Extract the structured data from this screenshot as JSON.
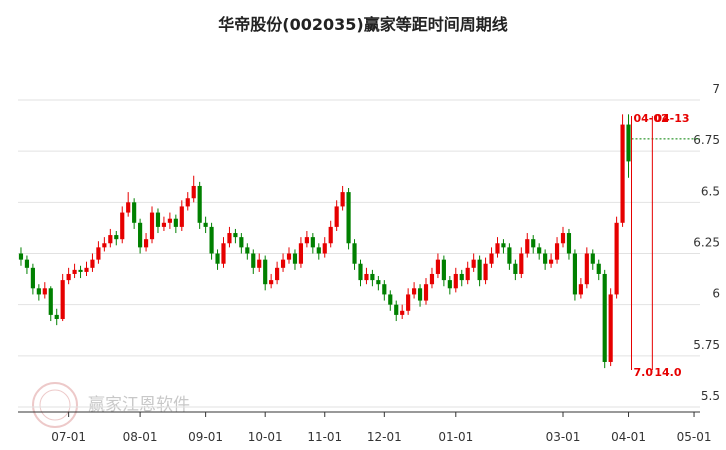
{
  "chart_data": {
    "type": "candlestick",
    "title": "华帝股份(002035)赢家等距时间周期线",
    "watermark": "赢家江恩软件",
    "up_color": "#e60000",
    "down_color": "#008000",
    "ylim": [
      5.5,
      7
    ],
    "yticks": [
      5.5,
      5.75,
      6,
      6.25,
      6.5,
      6.75,
      7
    ],
    "grid": true,
    "xlim": [
      -0.5,
      114
    ],
    "xticks": [
      {
        "value": 8,
        "label": "07-01"
      },
      {
        "value": 20,
        "label": "08-01"
      },
      {
        "value": 31,
        "label": "09-01"
      },
      {
        "value": 41,
        "label": "10-01"
      },
      {
        "value": 51,
        "label": "11-01"
      },
      {
        "value": 61,
        "label": "12-01"
      },
      {
        "value": 73,
        "label": "01-01"
      },
      {
        "value": 91,
        "label": "03-01"
      },
      {
        "value": 102,
        "label": "04-01"
      },
      {
        "value": 113,
        "label": "05-01"
      }
    ],
    "reference_line": {
      "value": 6.81,
      "color": "#008000"
    },
    "cycle_lines": [
      {
        "x": 102.5,
        "date": "04-02",
        "days": "7.0"
      },
      {
        "x": 106,
        "date": "04-13",
        "days": "14.0"
      }
    ],
    "cycle_color": "#e60000",
    "ohlc": [
      [
        6.25,
        6.28,
        6.19,
        6.22
      ],
      [
        6.22,
        6.24,
        6.15,
        6.18
      ],
      [
        6.18,
        6.2,
        6.05,
        6.08
      ],
      [
        6.08,
        6.1,
        6.02,
        6.05
      ],
      [
        6.05,
        6.11,
        6.03,
        6.08
      ],
      [
        6.08,
        6.09,
        5.92,
        5.95
      ],
      [
        5.95,
        5.98,
        5.9,
        5.93
      ],
      [
        5.93,
        6.15,
        5.92,
        6.12
      ],
      [
        6.12,
        6.18,
        6.1,
        6.15
      ],
      [
        6.15,
        6.2,
        6.13,
        6.17
      ],
      [
        6.17,
        6.19,
        6.13,
        6.16
      ],
      [
        6.16,
        6.21,
        6.14,
        6.18
      ],
      [
        6.18,
        6.25,
        6.16,
        6.22
      ],
      [
        6.22,
        6.31,
        6.2,
        6.28
      ],
      [
        6.28,
        6.33,
        6.26,
        6.3
      ],
      [
        6.3,
        6.37,
        6.28,
        6.34
      ],
      [
        6.34,
        6.36,
        6.29,
        6.32
      ],
      [
        6.32,
        6.48,
        6.3,
        6.45
      ],
      [
        6.45,
        6.55,
        6.43,
        6.5
      ],
      [
        6.5,
        6.52,
        6.37,
        6.4
      ],
      [
        6.4,
        6.42,
        6.25,
        6.28
      ],
      [
        6.28,
        6.35,
        6.26,
        6.32
      ],
      [
        6.32,
        6.48,
        6.3,
        6.45
      ],
      [
        6.45,
        6.47,
        6.35,
        6.38
      ],
      [
        6.38,
        6.43,
        6.36,
        6.4
      ],
      [
        6.4,
        6.45,
        6.37,
        6.42
      ],
      [
        6.42,
        6.44,
        6.35,
        6.38
      ],
      [
        6.38,
        6.51,
        6.36,
        6.48
      ],
      [
        6.48,
        6.55,
        6.46,
        6.52
      ],
      [
        6.52,
        6.63,
        6.5,
        6.58
      ],
      [
        6.58,
        6.6,
        6.37,
        6.4
      ],
      [
        6.4,
        6.43,
        6.35,
        6.38
      ],
      [
        6.38,
        6.4,
        6.22,
        6.25
      ],
      [
        6.25,
        6.27,
        6.17,
        6.2
      ],
      [
        6.2,
        6.33,
        6.18,
        6.3
      ],
      [
        6.3,
        6.38,
        6.28,
        6.35
      ],
      [
        6.35,
        6.37,
        6.3,
        6.33
      ],
      [
        6.33,
        6.35,
        6.25,
        6.28
      ],
      [
        6.28,
        6.3,
        6.22,
        6.25
      ],
      [
        6.25,
        6.27,
        6.15,
        6.18
      ],
      [
        6.18,
        6.25,
        6.16,
        6.22
      ],
      [
        6.22,
        6.24,
        6.07,
        6.1
      ],
      [
        6.1,
        6.15,
        6.08,
        6.12
      ],
      [
        6.12,
        6.21,
        6.1,
        6.18
      ],
      [
        6.18,
        6.25,
        6.16,
        6.22
      ],
      [
        6.22,
        6.28,
        6.2,
        6.25
      ],
      [
        6.25,
        6.27,
        6.17,
        6.2
      ],
      [
        6.2,
        6.33,
        6.18,
        6.3
      ],
      [
        6.3,
        6.36,
        6.28,
        6.33
      ],
      [
        6.33,
        6.35,
        6.25,
        6.28
      ],
      [
        6.28,
        6.3,
        6.22,
        6.25
      ],
      [
        6.25,
        6.33,
        6.23,
        6.3
      ],
      [
        6.3,
        6.41,
        6.28,
        6.38
      ],
      [
        6.38,
        6.51,
        6.36,
        6.48
      ],
      [
        6.48,
        6.58,
        6.46,
        6.55
      ],
      [
        6.55,
        6.57,
        6.27,
        6.3
      ],
      [
        6.3,
        6.32,
        6.17,
        6.2
      ],
      [
        6.2,
        6.22,
        6.09,
        6.12
      ],
      [
        6.12,
        6.18,
        6.1,
        6.15
      ],
      [
        6.15,
        6.17,
        6.09,
        6.12
      ],
      [
        6.12,
        6.14,
        6.07,
        6.1
      ],
      [
        6.1,
        6.12,
        6.02,
        6.05
      ],
      [
        6.05,
        6.07,
        5.97,
        6.0
      ],
      [
        6.0,
        6.02,
        5.92,
        5.95
      ],
      [
        5.95,
        6.0,
        5.93,
        5.97
      ],
      [
        5.97,
        6.08,
        5.95,
        6.05
      ],
      [
        6.05,
        6.11,
        6.03,
        6.08
      ],
      [
        6.08,
        6.1,
        5.99,
        6.02
      ],
      [
        6.02,
        6.13,
        6.0,
        6.1
      ],
      [
        6.1,
        6.18,
        6.08,
        6.15
      ],
      [
        6.15,
        6.25,
        6.13,
        6.22
      ],
      [
        6.22,
        6.24,
        6.09,
        6.12
      ],
      [
        6.12,
        6.14,
        6.05,
        6.08
      ],
      [
        6.08,
        6.18,
        6.06,
        6.15
      ],
      [
        6.15,
        6.17,
        6.09,
        6.12
      ],
      [
        6.12,
        6.21,
        6.1,
        6.18
      ],
      [
        6.18,
        6.25,
        6.16,
        6.22
      ],
      [
        6.22,
        6.24,
        6.09,
        6.12
      ],
      [
        6.12,
        6.23,
        6.1,
        6.2
      ],
      [
        6.2,
        6.28,
        6.18,
        6.25
      ],
      [
        6.25,
        6.33,
        6.23,
        6.3
      ],
      [
        6.3,
        6.32,
        6.25,
        6.28
      ],
      [
        6.28,
        6.3,
        6.17,
        6.2
      ],
      [
        6.2,
        6.22,
        6.12,
        6.15
      ],
      [
        6.15,
        6.28,
        6.13,
        6.25
      ],
      [
        6.25,
        6.35,
        6.23,
        6.32
      ],
      [
        6.32,
        6.34,
        6.25,
        6.28
      ],
      [
        6.28,
        6.3,
        6.22,
        6.25
      ],
      [
        6.25,
        6.27,
        6.17,
        6.2
      ],
      [
        6.2,
        6.25,
        6.18,
        6.22
      ],
      [
        6.22,
        6.33,
        6.2,
        6.3
      ],
      [
        6.3,
        6.38,
        6.28,
        6.35
      ],
      [
        6.35,
        6.37,
        6.22,
        6.25
      ],
      [
        6.25,
        6.27,
        6.02,
        6.05
      ],
      [
        6.05,
        6.13,
        6.03,
        6.1
      ],
      [
        6.1,
        6.28,
        6.08,
        6.25
      ],
      [
        6.25,
        6.27,
        6.17,
        6.2
      ],
      [
        6.2,
        6.22,
        6.12,
        6.15
      ],
      [
        6.15,
        6.17,
        5.69,
        5.72
      ],
      [
        5.72,
        6.08,
        5.7,
        6.05
      ],
      [
        6.05,
        6.43,
        6.03,
        6.4
      ],
      [
        6.4,
        6.93,
        6.38,
        6.88
      ],
      [
        6.88,
        6.93,
        6.62,
        6.7
      ]
    ]
  }
}
